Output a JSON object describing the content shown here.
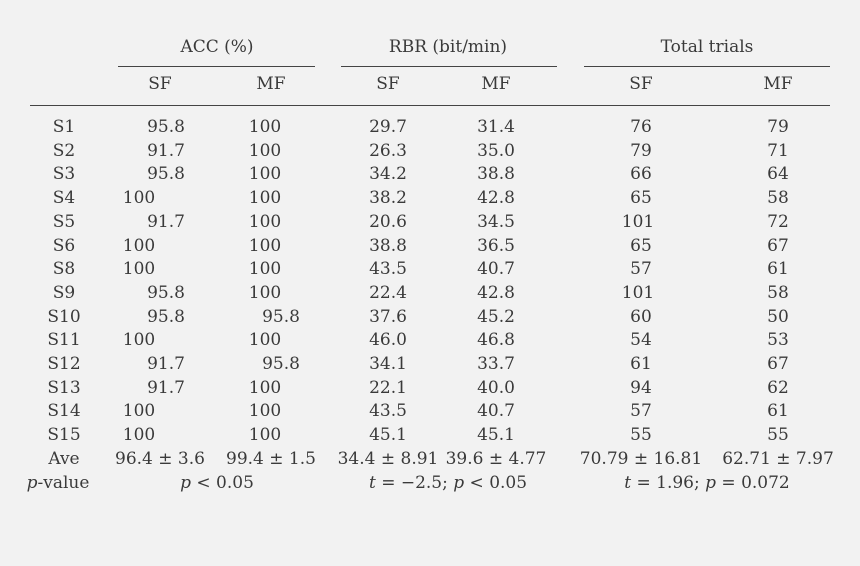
{
  "table": {
    "group_headers": [
      "ACC (%)",
      "RBR (bit/min)",
      "Total trials"
    ],
    "sub_headers": [
      "SF",
      "MF",
      "SF",
      "MF",
      "SF",
      "MF"
    ],
    "rows": [
      {
        "label": "S1",
        "values": [
          "95.8",
          "100",
          "29.7",
          "31.4",
          "76",
          "79"
        ]
      },
      {
        "label": "S2",
        "values": [
          "91.7",
          "100",
          "26.3",
          "35.0",
          "79",
          "71"
        ]
      },
      {
        "label": "S3",
        "values": [
          "95.8",
          "100",
          "34.2",
          "38.8",
          "66",
          "64"
        ]
      },
      {
        "label": "S4",
        "values": [
          "100",
          "100",
          "38.2",
          "42.8",
          "65",
          "58"
        ]
      },
      {
        "label": "S5",
        "values": [
          "91.7",
          "100",
          "20.6",
          "34.5",
          "101",
          "72"
        ]
      },
      {
        "label": "S6",
        "values": [
          "100",
          "100",
          "38.8",
          "36.5",
          "65",
          "67"
        ]
      },
      {
        "label": "S8",
        "values": [
          "100",
          "100",
          "43.5",
          "40.7",
          "57",
          "61"
        ]
      },
      {
        "label": "S9",
        "values": [
          "95.8",
          "100",
          "22.4",
          "42.8",
          "101",
          "58"
        ]
      },
      {
        "label": "S10",
        "values": [
          "95.8",
          "95.8",
          "37.6",
          "45.2",
          "60",
          "50"
        ]
      },
      {
        "label": "S11",
        "values": [
          "100",
          "100",
          "46.0",
          "46.8",
          "54",
          "53"
        ]
      },
      {
        "label": "S12",
        "values": [
          "91.7",
          "95.8",
          "34.1",
          "33.7",
          "61",
          "67"
        ]
      },
      {
        "label": "S13",
        "values": [
          "91.7",
          "100",
          "22.1",
          "40.0",
          "94",
          "62"
        ]
      },
      {
        "label": "S14",
        "values": [
          "100",
          "100",
          "43.5",
          "40.7",
          "57",
          "61"
        ]
      },
      {
        "label": "S15",
        "values": [
          "100",
          "100",
          "45.1",
          "45.1",
          "55",
          "55"
        ]
      },
      {
        "label": "Ave",
        "values": [
          "96.4 ± 3.6",
          "99.4 ± 1.5",
          "34.4 ± 8.91",
          "39.6 ± 4.77",
          "70.79 ± 16.81",
          "62.71 ± 7.97"
        ]
      }
    ],
    "pvalue_row": {
      "label_var": "p",
      "label_suffix": "-value",
      "acc": {
        "var": "p",
        "rest": " < 0.05"
      },
      "rbr": {
        "var1": "t",
        "mid": " = −2.5; ",
        "var2": "p",
        "rest": " < 0.05"
      },
      "trials": {
        "var1": "t",
        "mid": " = 1.96; ",
        "var2": "p",
        "rest": " = 0.072"
      }
    }
  }
}
